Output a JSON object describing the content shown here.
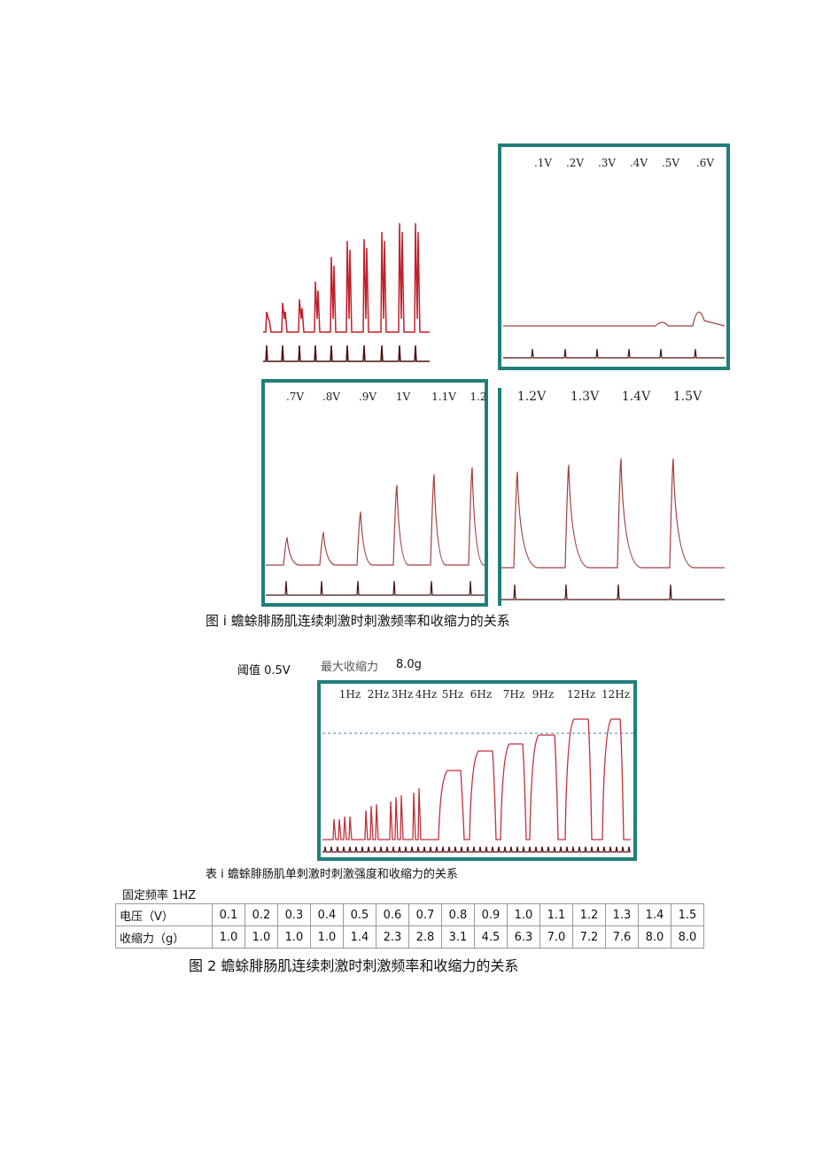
{
  "figure_1": {
    "panel_b_labels": [
      ".1V",
      ".2V",
      ".3V",
      ".4V",
      ".5V",
      ".6V"
    ],
    "panel_c_labels": [
      ".7V",
      ".8V",
      ".9V",
      "1V",
      "1.1V",
      "1.2"
    ],
    "panel_d_labels": [
      "1.2V",
      "1.3V",
      "1.4V",
      "1.5V"
    ],
    "caption": "图 i 蟾蜍腓肠肌连续刺激时刺激频率和收缩力的关系"
  },
  "figure_2": {
    "threshold": "阈值 0.5V",
    "max_force_label": "最大收缩力",
    "max_force_value": "8.0g",
    "frequency_labels": [
      "1Hz",
      "2Hz",
      "3Hz",
      "4Hz",
      "5Hz",
      "6Hz",
      "7Hz",
      "9Hz",
      "12Hz",
      "12Hz"
    ],
    "caption": "图 2 蟾蜍腓肠肌连续刺激时刺激频率和收缩力的关系"
  },
  "table": {
    "caption": "表 i 蟾蜍腓肠肌单刺激时刺激强度和收缩力的关系",
    "note": "固定频率 1HZ",
    "rows": [
      [
        "电压（V）",
        "0.1",
        "0.2",
        "0.3",
        "0.4",
        "0.5",
        "0.6",
        "0.7",
        "0.8",
        "0.9",
        "1.0",
        "1.1",
        "1.2",
        "1.3",
        "1.4",
        "1.5"
      ],
      [
        "收缩力（g）",
        "1.0",
        "1.0",
        "1.0",
        "1.0",
        "1.4",
        "2.3",
        "2.8",
        "3.1",
        "4.5",
        "6.3",
        "7.0",
        "7.2",
        "7.6",
        "8.0",
        "8.0"
      ]
    ]
  }
}
